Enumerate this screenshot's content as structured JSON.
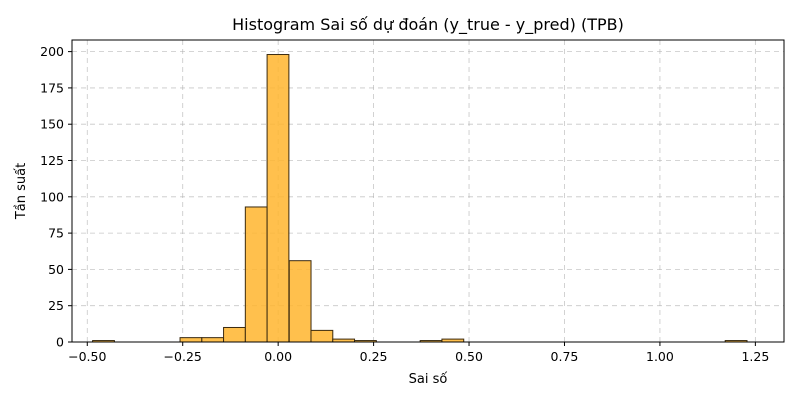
{
  "chart_data": {
    "type": "bar",
    "title": "Histogram Sai số dự đoán (y_true - y_pred) (TPB)",
    "xlabel": "Sai số",
    "ylabel": "Tần suất",
    "xlim": [
      -0.54,
      1.325
    ],
    "ylim": [
      0,
      208
    ],
    "grid": true,
    "bar_color": "#ffb52e",
    "edge_color": "#3a2a10",
    "bin_width": 0.0571,
    "bins": [
      {
        "x0": -0.486,
        "count": 1
      },
      {
        "x0": -0.429,
        "count": 0
      },
      {
        "x0": -0.372,
        "count": 0
      },
      {
        "x0": -0.315,
        "count": 0
      },
      {
        "x0": -0.257,
        "count": 3
      },
      {
        "x0": -0.2,
        "count": 3
      },
      {
        "x0": -0.143,
        "count": 10
      },
      {
        "x0": -0.086,
        "count": 93
      },
      {
        "x0": -0.029,
        "count": 198
      },
      {
        "x0": 0.029,
        "count": 56
      },
      {
        "x0": 0.086,
        "count": 8
      },
      {
        "x0": 0.143,
        "count": 2
      },
      {
        "x0": 0.2,
        "count": 1
      },
      {
        "x0": 0.257,
        "count": 0
      },
      {
        "x0": 0.315,
        "count": 0
      },
      {
        "x0": 0.372,
        "count": 1
      },
      {
        "x0": 0.429,
        "count": 2
      },
      {
        "x0": 0.486,
        "count": 0
      },
      {
        "x0": 0.543,
        "count": 0
      },
      {
        "x0": 0.6,
        "count": 0
      },
      {
        "x0": 0.657,
        "count": 0
      },
      {
        "x0": 0.714,
        "count": 0
      },
      {
        "x0": 0.771,
        "count": 0
      },
      {
        "x0": 0.829,
        "count": 0
      },
      {
        "x0": 0.886,
        "count": 0
      },
      {
        "x0": 0.943,
        "count": 0
      },
      {
        "x0": 1.0,
        "count": 0
      },
      {
        "x0": 1.057,
        "count": 0
      },
      {
        "x0": 1.114,
        "count": 0
      },
      {
        "x0": 1.171,
        "count": 1
      }
    ],
    "x_ticks": [
      {
        "value": -0.5,
        "label": "−0.50"
      },
      {
        "value": -0.25,
        "label": "−0.25"
      },
      {
        "value": 0.0,
        "label": "0.00"
      },
      {
        "value": 0.25,
        "label": "0.25"
      },
      {
        "value": 0.5,
        "label": "0.50"
      },
      {
        "value": 0.75,
        "label": "0.75"
      },
      {
        "value": 1.0,
        "label": "1.00"
      },
      {
        "value": 1.25,
        "label": "1.25"
      }
    ],
    "y_ticks": [
      {
        "value": 0,
        "label": "0"
      },
      {
        "value": 25,
        "label": "25"
      },
      {
        "value": 50,
        "label": "50"
      },
      {
        "value": 75,
        "label": "75"
      },
      {
        "value": 100,
        "label": "100"
      },
      {
        "value": 125,
        "label": "125"
      },
      {
        "value": 150,
        "label": "150"
      },
      {
        "value": 175,
        "label": "175"
      },
      {
        "value": 200,
        "label": "200"
      }
    ]
  }
}
